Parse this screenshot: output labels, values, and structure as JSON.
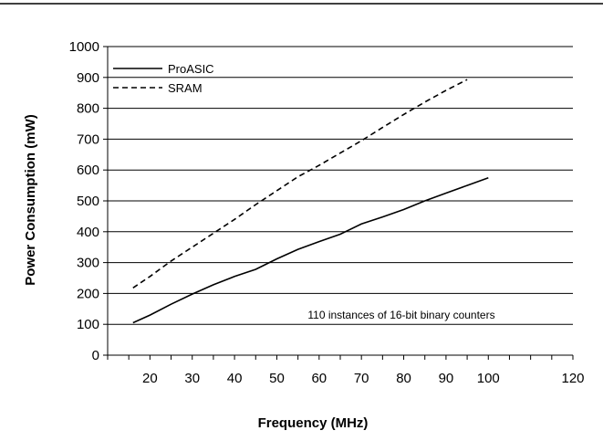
{
  "chart_data": {
    "type": "line",
    "title": "",
    "xlabel": "Frequency (MHz)",
    "ylabel": "Power Consumption (mW)",
    "xlim": [
      10,
      120
    ],
    "ylim": [
      0,
      1000
    ],
    "x_ticks": [
      20,
      30,
      40,
      50,
      60,
      70,
      80,
      90,
      100,
      120
    ],
    "y_ticks": [
      0,
      100,
      200,
      300,
      400,
      500,
      600,
      700,
      800,
      900,
      1000
    ],
    "grid": "horizontal",
    "legend_position": "top-left",
    "annotation": "110 instances of 16-bit binary counters",
    "series": [
      {
        "name": "ProASIC",
        "line_style": "solid",
        "x": [
          16,
          20,
          25,
          30,
          35,
          40,
          45,
          50,
          55,
          60,
          65,
          70,
          75,
          80,
          85,
          90,
          95,
          100
        ],
        "y": [
          105,
          130,
          165,
          198,
          228,
          255,
          278,
          312,
          343,
          368,
          392,
          425,
          448,
          472,
          500,
          525,
          550,
          575
        ]
      },
      {
        "name": "SRAM",
        "line_style": "dashed",
        "x": [
          16,
          20,
          25,
          30,
          35,
          40,
          45,
          50,
          55,
          60,
          65,
          70,
          75,
          80,
          85,
          90,
          95
        ],
        "y": [
          218,
          255,
          305,
          350,
          395,
          440,
          488,
          533,
          578,
          615,
          655,
          695,
          738,
          780,
          820,
          858,
          893
        ]
      }
    ]
  },
  "colors": {
    "line": "#000000",
    "grid": "#000000",
    "background": "#ffffff"
  }
}
